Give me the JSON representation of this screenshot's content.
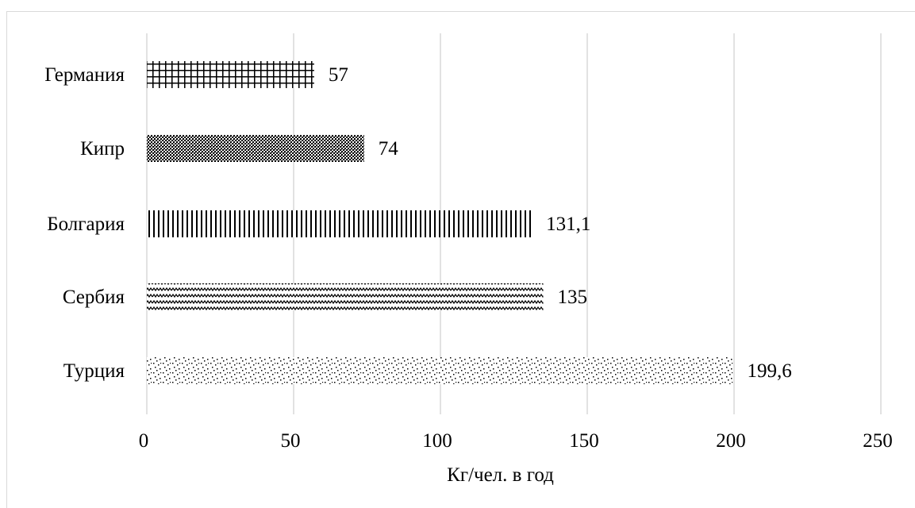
{
  "chart_data": {
    "type": "bar",
    "orientation": "horizontal",
    "categories": [
      "Германия",
      "Кипр",
      "Болгария",
      "Сербия",
      "Турция"
    ],
    "values": [
      57,
      74,
      131.1,
      135,
      199.6
    ],
    "value_labels": [
      "57",
      "74",
      "131,1",
      "135",
      "199,6"
    ],
    "patterns": [
      "grid",
      "dots",
      "vertical-lines",
      "zigzag",
      "confetti"
    ],
    "xlabel": "Кг/чел. в год",
    "xlim": [
      0,
      250
    ],
    "xticks": [
      0,
      50,
      100,
      150,
      200,
      250
    ],
    "xtick_labels": [
      "0",
      "50",
      "100",
      "150",
      "200",
      "250"
    ],
    "grid": true,
    "bar_color": "#000000",
    "grid_color": "#d9d9d9"
  }
}
